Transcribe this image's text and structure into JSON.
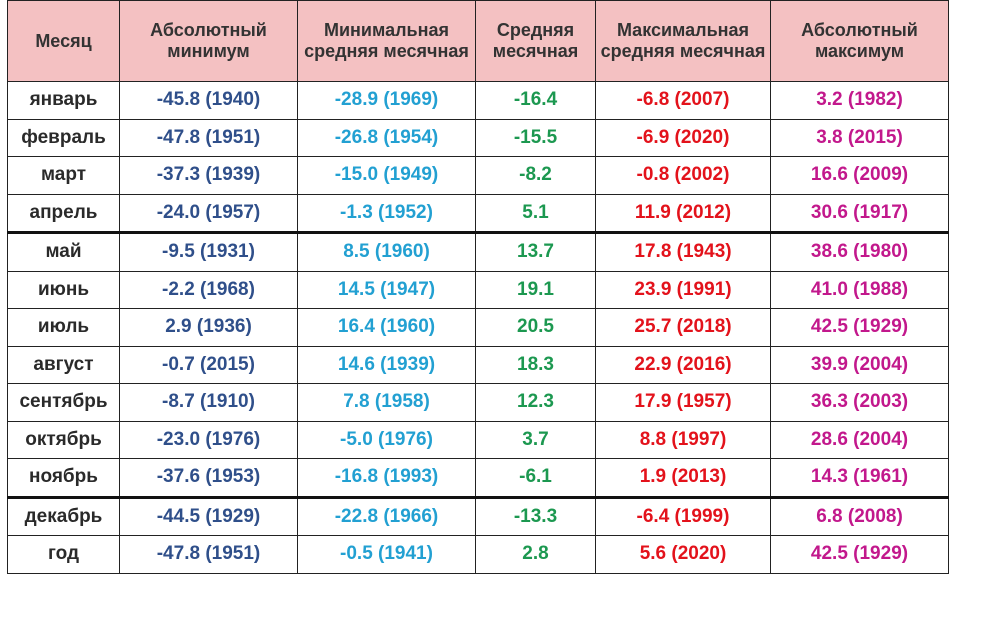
{
  "headers": [
    "Месяц",
    "Абсолютный минимум",
    "Минимальная средняя месячная",
    "Средняя месячная",
    "Максимальная средняя месячная",
    "Абсолютный максимум"
  ],
  "colors": {
    "abs_min": "#2f4f8a",
    "min_avg": "#22a0d2",
    "avg": "#1c9850",
    "max_avg": "#e3121b",
    "abs_max": "#c2188c",
    "header_bg": "#f4c1c2"
  },
  "rows": [
    [
      "январь",
      "-45.8 (1940)",
      "-28.9 (1969)",
      "-16.4",
      "-6.8 (2007)",
      "3.2 (1982)"
    ],
    [
      "февраль",
      "-47.8 (1951)",
      "-26.8 (1954)",
      "-15.5",
      "-6.9 (2020)",
      "3.8 (2015)"
    ],
    [
      "март",
      "-37.3 (1939)",
      "-15.0 (1949)",
      "-8.2",
      "-0.8 (2002)",
      "16.6 (2009)"
    ],
    [
      "апрель",
      "-24.0 (1957)",
      "-1.3 (1952)",
      "5.1",
      "11.9 (2012)",
      "30.6 (1917)"
    ],
    [
      "май",
      "-9.5 (1931)",
      "8.5 (1960)",
      "13.7",
      "17.8 (1943)",
      "38.6 (1980)"
    ],
    [
      "июнь",
      "-2.2 (1968)",
      "14.5 (1947)",
      "19.1",
      "23.9 (1991)",
      "41.0 (1988)"
    ],
    [
      "июль",
      "2.9 (1936)",
      "16.4 (1960)",
      "20.5",
      "25.7 (2018)",
      "42.5 (1929)"
    ],
    [
      "август",
      "-0.7 (2015)",
      "14.6 (1939)",
      "18.3",
      "22.9 (2016)",
      "39.9 (2004)"
    ],
    [
      "сентябрь",
      "-8.7 (1910)",
      "7.8 (1958)",
      "12.3",
      "17.9 (1957)",
      "36.3 (2003)"
    ],
    [
      "октябрь",
      "-23.0 (1976)",
      "-5.0 (1976)",
      "3.7",
      "8.8 (1997)",
      "28.6 (2004)"
    ],
    [
      "ноябрь",
      "-37.6 (1953)",
      "-16.8 (1993)",
      "-6.1",
      "1.9 (2013)",
      "14.3 (1961)"
    ],
    [
      "декабрь",
      "-44.5 (1929)",
      "-22.8 (1966)",
      "-13.3",
      "-6.4 (1999)",
      "6.8 (2008)"
    ],
    [
      "год",
      "-47.8 (1951)",
      "-0.5 (1941)",
      "2.8",
      "5.6 (2020)",
      "42.5 (1929)"
    ]
  ]
}
